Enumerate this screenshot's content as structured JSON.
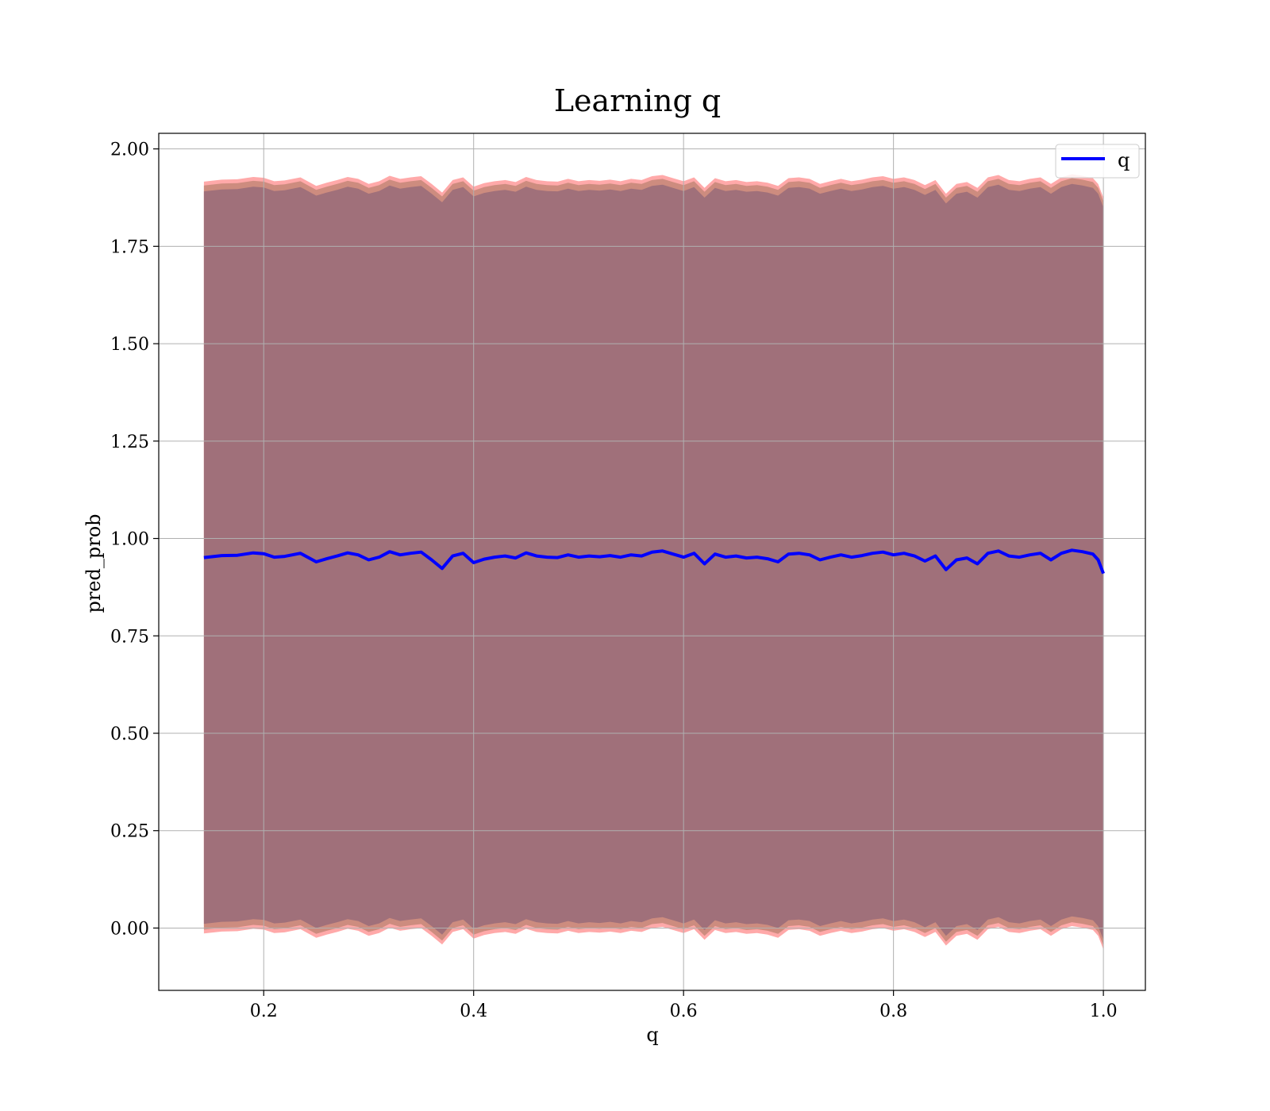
{
  "chart_data": {
    "type": "line",
    "title": "Learning q",
    "xlabel": "q",
    "ylabel": "pred_prob",
    "xlim": [
      0.1,
      1.04
    ],
    "ylim": [
      -0.16,
      2.04
    ],
    "xticks": [
      0.2,
      0.4,
      0.6,
      0.8,
      1.0
    ],
    "xtick_labels": [
      "0.2",
      "0.4",
      "0.6",
      "0.8",
      "1.0"
    ],
    "yticks": [
      0.0,
      0.25,
      0.5,
      0.75,
      1.0,
      1.25,
      1.5,
      1.75,
      2.0
    ],
    "ytick_labels": [
      "0.00",
      "0.25",
      "0.50",
      "0.75",
      "1.00",
      "1.25",
      "1.50",
      "1.75",
      "2.00"
    ],
    "grid": true,
    "legend": {
      "position": "top-right",
      "entries": [
        "q"
      ]
    },
    "colors": {
      "line": "#0000ff",
      "band_inner": "#a0707a",
      "band_middle": "#c8887a",
      "band_outer": "#ff8c8c",
      "grid": "#b0b0b0"
    },
    "band_half_widths": {
      "inner": 0.94,
      "middle": 0.955,
      "outer": 0.965
    },
    "series": [
      {
        "name": "q",
        "x": [
          0.143,
          0.16,
          0.175,
          0.19,
          0.2,
          0.21,
          0.22,
          0.235,
          0.25,
          0.26,
          0.27,
          0.28,
          0.29,
          0.3,
          0.31,
          0.32,
          0.33,
          0.34,
          0.35,
          0.36,
          0.37,
          0.38,
          0.39,
          0.4,
          0.41,
          0.42,
          0.43,
          0.44,
          0.45,
          0.46,
          0.47,
          0.48,
          0.49,
          0.5,
          0.51,
          0.52,
          0.53,
          0.54,
          0.55,
          0.56,
          0.57,
          0.58,
          0.59,
          0.6,
          0.61,
          0.62,
          0.63,
          0.64,
          0.65,
          0.66,
          0.67,
          0.68,
          0.69,
          0.7,
          0.71,
          0.72,
          0.73,
          0.74,
          0.75,
          0.76,
          0.77,
          0.78,
          0.79,
          0.8,
          0.81,
          0.82,
          0.83,
          0.84,
          0.85,
          0.86,
          0.87,
          0.88,
          0.89,
          0.9,
          0.91,
          0.92,
          0.93,
          0.94,
          0.95,
          0.96,
          0.97,
          0.98,
          0.99,
          0.995,
          1.0
        ],
        "y": [
          0.951,
          0.956,
          0.957,
          0.963,
          0.961,
          0.952,
          0.954,
          0.962,
          0.94,
          0.948,
          0.955,
          0.963,
          0.958,
          0.945,
          0.952,
          0.966,
          0.958,
          0.962,
          0.965,
          0.945,
          0.923,
          0.955,
          0.962,
          0.938,
          0.947,
          0.952,
          0.955,
          0.95,
          0.963,
          0.955,
          0.952,
          0.951,
          0.958,
          0.952,
          0.955,
          0.953,
          0.956,
          0.952,
          0.958,
          0.955,
          0.965,
          0.968,
          0.96,
          0.952,
          0.962,
          0.935,
          0.96,
          0.952,
          0.955,
          0.95,
          0.952,
          0.948,
          0.94,
          0.96,
          0.962,
          0.958,
          0.945,
          0.952,
          0.958,
          0.952,
          0.956,
          0.962,
          0.965,
          0.958,
          0.962,
          0.955,
          0.942,
          0.955,
          0.92,
          0.945,
          0.95,
          0.935,
          0.962,
          0.968,
          0.955,
          0.952,
          0.958,
          0.962,
          0.945,
          0.962,
          0.97,
          0.966,
          0.96,
          0.945,
          0.91
        ]
      }
    ]
  }
}
